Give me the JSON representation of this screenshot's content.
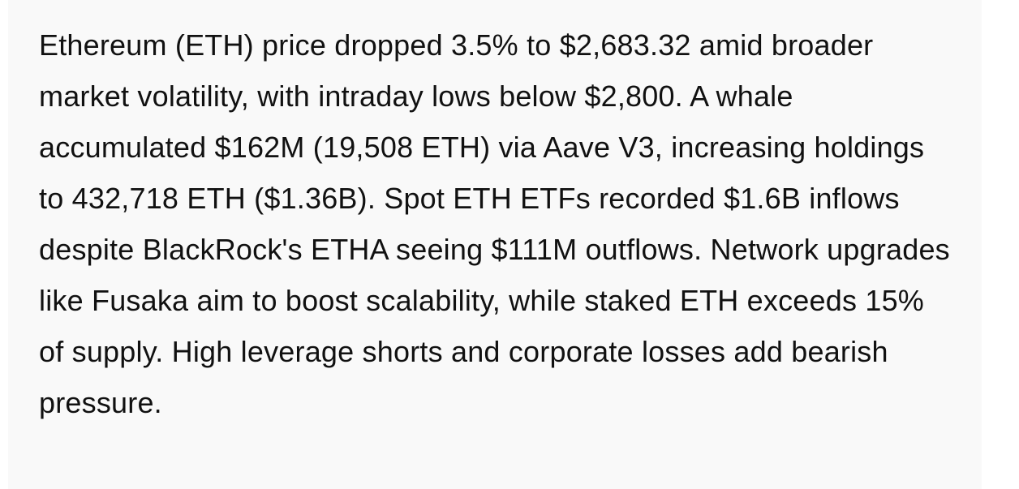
{
  "body": {
    "text": "Ethereum (ETH) price dropped 3.5% to $2,683.32 amid broader market volatility, with intraday lows below $2,800. A whale accumulated $162M (19,508 ETH) via Aave V3, increasing holdings to 432,718 ETH ($1.36B). Spot ETH ETFs recorded $1.6B inflows despite BlackRock's ETHA seeing $111M outflows. Network upgrades like Fusaka aim to boost scalability, while staked ETH exceeds 15% of supply. High leverage shorts and corporate losses add bearish pressure."
  }
}
